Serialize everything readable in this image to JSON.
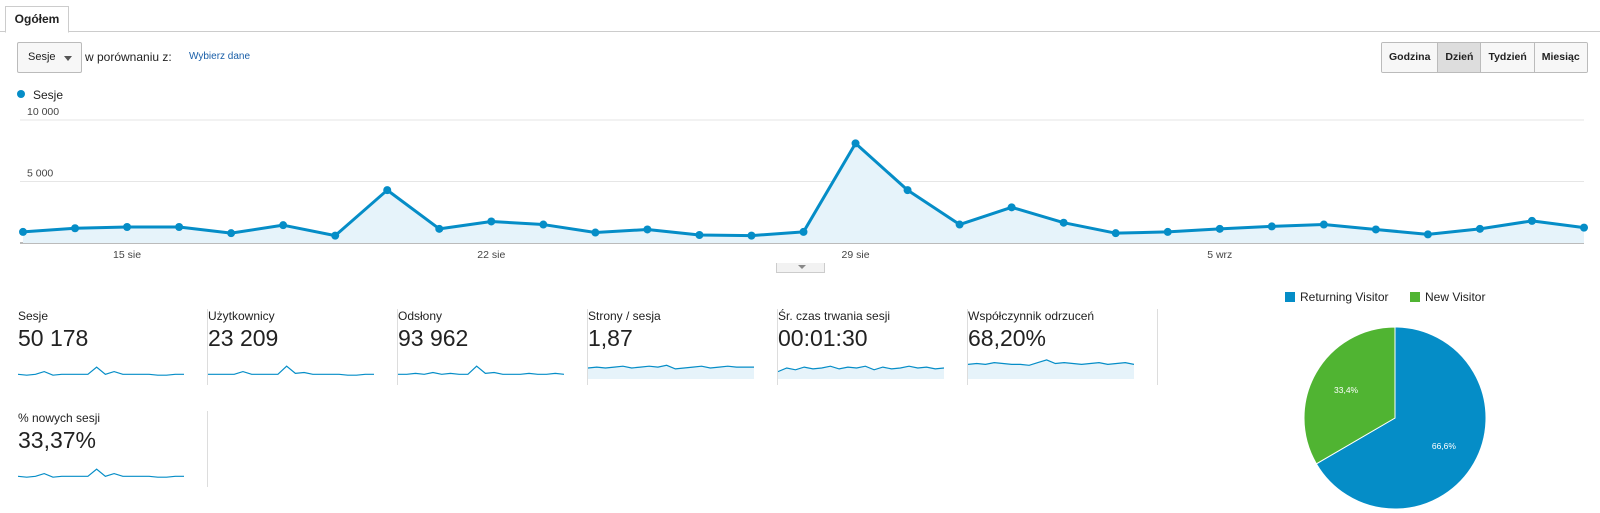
{
  "tabs": [
    {
      "label": "Ogółem"
    }
  ],
  "toolbar": {
    "metric": "Sesje",
    "compare_label": "w porównaniu z:",
    "compare_link": "Wybierz dane",
    "granularity": [
      "Godzina",
      "Dzień",
      "Tydzień",
      "Miesiąc"
    ],
    "active_granularity": "Dzień"
  },
  "chart_data": {
    "type": "area",
    "series": [
      {
        "name": "Sesje",
        "color": "#058dc7",
        "values": [
          900,
          1200,
          1300,
          1300,
          800,
          1450,
          600,
          4300,
          1150,
          1750,
          1500,
          850,
          1100,
          650,
          600,
          900,
          8100,
          4300,
          1500,
          2900,
          1650,
          800,
          900,
          1150,
          1350,
          1500,
          1100,
          700,
          1150,
          1800,
          1250
        ]
      }
    ],
    "ylim": [
      0,
      10000
    ],
    "yticks": [
      {
        "value": 5000,
        "label": "5 000"
      },
      {
        "value": 10000,
        "label": "10 000"
      }
    ],
    "xticks": [
      {
        "index": 2,
        "label": "15 sie"
      },
      {
        "index": 9,
        "label": "22 sie"
      },
      {
        "index": 16,
        "label": "29 sie"
      },
      {
        "index": 23,
        "label": "5 wrz"
      }
    ],
    "grid": true,
    "legend": "top-left"
  },
  "scorecards": [
    {
      "label": "Sesje",
      "value": "50 178",
      "fill": false,
      "trend": [
        3,
        2,
        3,
        6,
        2,
        3,
        3,
        3,
        3,
        11,
        3,
        6,
        3,
        3,
        3,
        3,
        2,
        2,
        3,
        3
      ]
    },
    {
      "label": "Użytkownicy",
      "value": "23 209",
      "fill": false,
      "trend": [
        3,
        3,
        3,
        3,
        6,
        3,
        3,
        3,
        3,
        12,
        4,
        5,
        3,
        3,
        3,
        3,
        2,
        2,
        3,
        3
      ]
    },
    {
      "label": "Odsłony",
      "value": "93 962",
      "fill": false,
      "trend": [
        3,
        3,
        4,
        3,
        5,
        3,
        4,
        3,
        3,
        12,
        4,
        5,
        3,
        3,
        3,
        4,
        3,
        3,
        4,
        3
      ]
    },
    {
      "label": "Strony / sesja",
      "value": "1,87",
      "fill": true,
      "trend": [
        10,
        11,
        10,
        11,
        12,
        10,
        11,
        12,
        11,
        13,
        9,
        10,
        11,
        12,
        10,
        11,
        12,
        11,
        11,
        11
      ]
    },
    {
      "label": "Śr. czas trwania sesji",
      "value": "00:01:30",
      "fill": true,
      "trend": [
        6,
        10,
        8,
        11,
        9,
        10,
        12,
        9,
        11,
        10,
        12,
        8,
        11,
        9,
        10,
        12,
        10,
        11,
        9,
        10
      ]
    },
    {
      "label": "Współczynnik odrzuceń",
      "value": "68,20%",
      "fill": true,
      "trend": [
        14,
        15,
        14,
        16,
        15,
        14,
        14,
        13,
        16,
        19,
        15,
        16,
        15,
        14,
        15,
        16,
        14,
        15,
        16,
        14
      ]
    },
    {
      "label": "% nowych sesji",
      "value": "33,37%",
      "fill": false,
      "trend": [
        3,
        2,
        3,
        6,
        2,
        3,
        3,
        3,
        3,
        11,
        3,
        6,
        3,
        3,
        3,
        3,
        2,
        2,
        3,
        3
      ]
    }
  ],
  "pie": {
    "legend": [
      {
        "label": "Returning Visitor",
        "color": "#058dc7"
      },
      {
        "label": "New Visitor",
        "color": "#50b432"
      }
    ],
    "slices": [
      {
        "label": "Returning Visitor",
        "percent": 66.6,
        "text": "66,6%",
        "color": "#058dc7"
      },
      {
        "label": "New Visitor",
        "percent": 33.4,
        "text": "33,4%",
        "color": "#50b432"
      }
    ]
  }
}
